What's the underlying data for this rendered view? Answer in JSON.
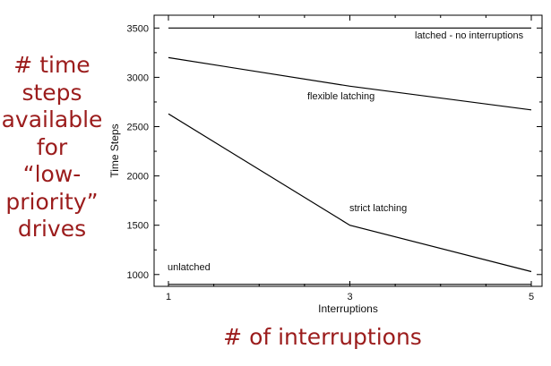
{
  "captions": {
    "side_lines": [
      "# time",
      "steps",
      "available",
      "for",
      "“low-",
      "priority”",
      "drives"
    ],
    "bottom": "# of interruptions"
  },
  "chart_data": {
    "type": "line",
    "xlabel": "Interruptions",
    "ylabel": "Time Steps",
    "xlim": [
      1,
      5
    ],
    "ylim": [
      880,
      3630
    ],
    "xticks": [
      1,
      3,
      5
    ],
    "xtick_labels": [
      "1",
      "3",
      "5"
    ],
    "yticks": [
      1000,
      1500,
      2000,
      2500,
      3000,
      3500
    ],
    "ytick_labels": [
      "1000",
      "1500",
      "2000",
      "2500",
      "3000",
      "3500"
    ],
    "grid": false,
    "legend": "none",
    "line_color": "#000000",
    "series": [
      {
        "name": "latched - no interruptions",
        "x": [
          1,
          5
        ],
        "y": [
          3500,
          3500
        ]
      },
      {
        "name": "flexible latching",
        "x": [
          1,
          3,
          5
        ],
        "y": [
          3200,
          2910,
          2670
        ]
      },
      {
        "name": "strict latching",
        "x": [
          1,
          3,
          5
        ],
        "y": [
          2630,
          1500,
          1030
        ]
      },
      {
        "name": "unlatched",
        "x": [
          1,
          5
        ],
        "y": [
          900,
          900
        ]
      }
    ]
  }
}
